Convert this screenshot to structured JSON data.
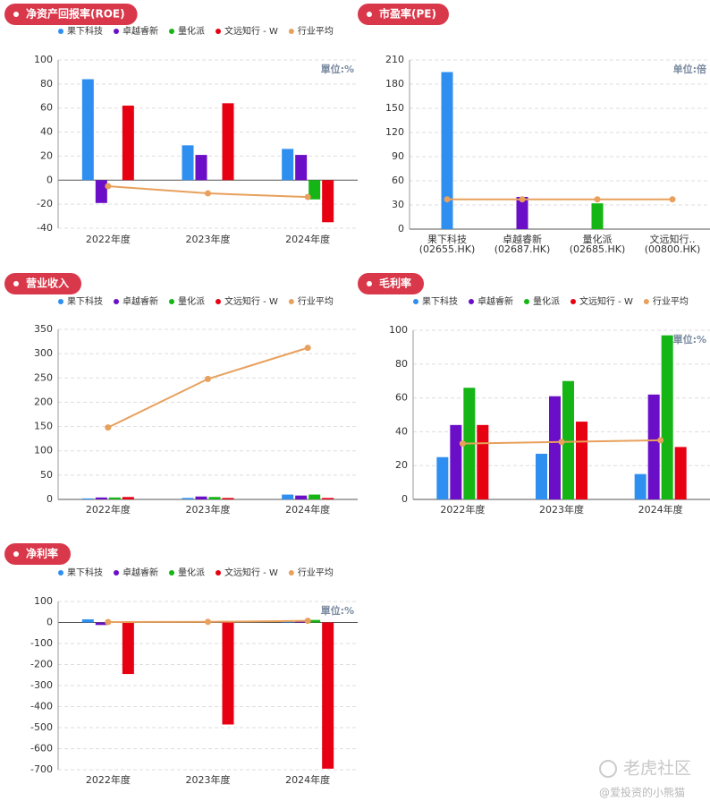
{
  "chart_data": [
    {
      "type": "bar",
      "title": "净资产回报率(ROE)",
      "annotation": "單位:%",
      "categories": [
        "2022年度",
        "2023年度",
        "2024年度"
      ],
      "series": [
        {
          "name": "果下科技",
          "color": "#2f8ff0",
          "values": [
            84,
            29,
            26
          ]
        },
        {
          "name": "卓越睿新",
          "color": "#6a0ec8",
          "values": [
            -19,
            21,
            21
          ]
        },
        {
          "name": "量化派",
          "color": "#14b514",
          "values": [
            null,
            null,
            -16
          ]
        },
        {
          "name": "文远知行 - W",
          "color": "#e60012",
          "values": [
            62,
            64,
            -35
          ]
        },
        {
          "name": "行业平均",
          "type": "line",
          "color": "#e8a05c",
          "values": [
            -5,
            -11,
            -14
          ]
        }
      ],
      "ylim": [
        -40,
        100
      ],
      "yticks": [
        -40,
        -20,
        0,
        20,
        40,
        60,
        80,
        100
      ],
      "grid": true
    },
    {
      "type": "bar",
      "title": "市盈率(PE)",
      "annotation": "单位:倍",
      "categories": [
        [
          "果下科技",
          "(02655.HK)"
        ],
        [
          "卓越睿新",
          "(02687.HK)"
        ],
        [
          "量化派",
          "(02685.HK)"
        ],
        [
          "文远知行..",
          "(00800.HK)"
        ]
      ],
      "values": [
        195,
        40,
        32,
        null
      ],
      "colors": [
        "#2f8ff0",
        "#6a0ec8",
        "#14b514",
        "#e60012"
      ],
      "line": {
        "color": "#e8a05c",
        "values": [
          37,
          37,
          37,
          37
        ]
      },
      "ylim": [
        0,
        210
      ],
      "yticks": [
        0,
        30,
        60,
        90,
        120,
        150,
        180,
        210
      ],
      "grid": true
    },
    {
      "type": "bar",
      "title": "营业收入",
      "categories": [
        "2022年度",
        "2023年度",
        "2024年度"
      ],
      "series": [
        {
          "name": "果下科技",
          "color": "#2f8ff0",
          "values": [
            2,
            3,
            10
          ]
        },
        {
          "name": "卓越睿新",
          "color": "#6a0ec8",
          "values": [
            4,
            6,
            8
          ]
        },
        {
          "name": "量化派",
          "color": "#14b514",
          "values": [
            4,
            5,
            10
          ]
        },
        {
          "name": "文远知行 - W",
          "color": "#e60012",
          "values": [
            5,
            3,
            3
          ]
        },
        {
          "name": "行业平均",
          "type": "line",
          "color": "#e8a05c",
          "values": [
            148,
            248,
            312
          ]
        }
      ],
      "ylim": [
        0,
        350
      ],
      "yticks": [
        0,
        50,
        100,
        150,
        200,
        250,
        300,
        350
      ],
      "grid": true
    },
    {
      "type": "bar",
      "title": "毛利率",
      "annotation": "單位:%",
      "categories": [
        "2022年度",
        "2023年度",
        "2024年度"
      ],
      "series": [
        {
          "name": "果下科技",
          "color": "#2f8ff0",
          "values": [
            25,
            27,
            15
          ]
        },
        {
          "name": "卓越睿新",
          "color": "#6a0ec8",
          "values": [
            44,
            61,
            62
          ]
        },
        {
          "name": "量化派",
          "color": "#14b514",
          "values": [
            66,
            70,
            97
          ]
        },
        {
          "name": "文远知行 - W",
          "color": "#e60012",
          "values": [
            44,
            46,
            31
          ]
        },
        {
          "name": "行业平均",
          "type": "line",
          "color": "#e8a05c",
          "values": [
            33,
            34,
            35
          ]
        }
      ],
      "ylim": [
        0,
        100
      ],
      "yticks": [
        0,
        20,
        40,
        60,
        80,
        100
      ],
      "grid": true
    },
    {
      "type": "bar",
      "title": "净利率",
      "annotation": "單位:%",
      "categories": [
        "2022年度",
        "2023年度",
        "2024年度"
      ],
      "series": [
        {
          "name": "果下科技",
          "color": "#2f8ff0",
          "values": [
            15,
            3,
            5
          ]
        },
        {
          "name": "卓越睿新",
          "color": "#6a0ec8",
          "values": [
            -12,
            5,
            8
          ]
        },
        {
          "name": "量化派",
          "color": "#14b514",
          "values": [
            null,
            5,
            12
          ]
        },
        {
          "name": "文远知行 - W",
          "color": "#e60012",
          "values": [
            -245,
            -485,
            -695
          ]
        },
        {
          "name": "行业平均",
          "type": "line",
          "color": "#e8a05c",
          "values": [
            2,
            3,
            8
          ]
        }
      ],
      "ylim": [
        -700,
        100
      ],
      "yticks": [
        -700,
        -600,
        -500,
        -400,
        -300,
        -200,
        -100,
        0,
        100
      ],
      "grid": true
    }
  ],
  "watermark": {
    "logo": "老虎社区",
    "author": "@爱投资的小熊猫"
  }
}
